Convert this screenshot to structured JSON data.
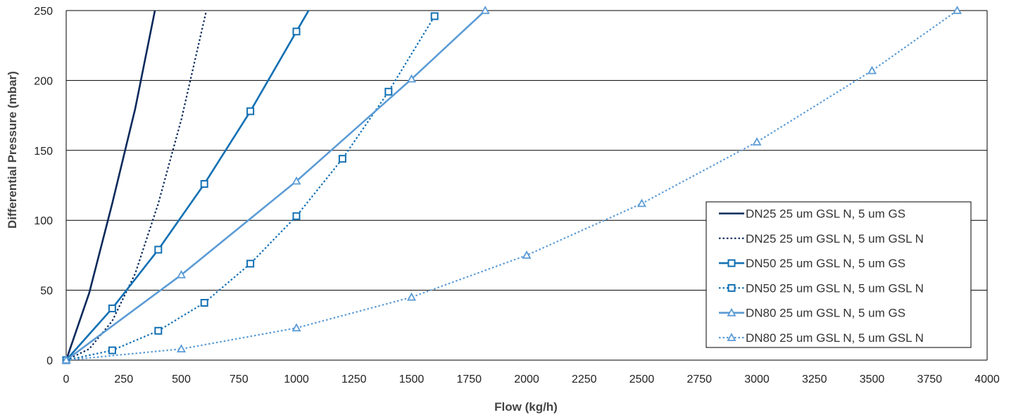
{
  "chart_data": {
    "type": "line",
    "title": "",
    "xlabel": "Flow (kg/h)",
    "ylabel": "Differential Pressure (mbar)",
    "xlim": [
      0,
      4000
    ],
    "ylim": [
      0,
      250
    ],
    "x_ticks": [
      "0",
      "250",
      "500",
      "750",
      "1000",
      "1250",
      "1500",
      "1750",
      "2000",
      "2250",
      "2500",
      "2750",
      "3000",
      "3250",
      "3500",
      "3750",
      "4000"
    ],
    "y_ticks": [
      "0",
      "50",
      "100",
      "150",
      "200",
      "250"
    ],
    "grid": "horizontal",
    "legend_position": "right",
    "series": [
      {
        "name": "DN25 25 um GSL N, 5 um GS",
        "color": "#0b2a5c",
        "dash": "solid",
        "marker": "none",
        "x": [
          0,
          100,
          200,
          300,
          400
        ],
        "y": [
          0,
          48,
          112,
          180,
          262
        ]
      },
      {
        "name": "DN25 25 um GSL N, 5 um GSL N",
        "color": "#0b2a5c",
        "dash": "dotted",
        "marker": "none",
        "x": [
          0,
          100,
          200,
          300,
          400,
          500,
          620
        ],
        "y": [
          0,
          8,
          28,
          62,
          112,
          172,
          258
        ]
      },
      {
        "name": "DN50 25 um GSL N, 5 um GS",
        "color": "#1270b3",
        "dash": "solid",
        "marker": "square",
        "x": [
          0,
          200,
          400,
          600,
          800,
          1000,
          1060
        ],
        "y": [
          0,
          37,
          79,
          126,
          178,
          235,
          252
        ]
      },
      {
        "name": "DN50 25 um GSL N, 5 um GSL N",
        "color": "#1270b3",
        "dash": "dotted",
        "marker": "square",
        "x": [
          0,
          200,
          400,
          600,
          800,
          1000,
          1200,
          1400,
          1600
        ],
        "y": [
          0,
          7,
          21,
          41,
          69,
          103,
          144,
          192,
          246
        ]
      },
      {
        "name": "DN80 25 um GSL N, 5 um GS",
        "color": "#5b9bd5",
        "dash": "solid",
        "marker": "triangle",
        "x": [
          0,
          500,
          1000,
          1500,
          1820
        ],
        "y": [
          0,
          61,
          128,
          201,
          250
        ]
      },
      {
        "name": "DN80 25 um GSL N, 5 um GSL N",
        "color": "#5b9bd5",
        "dash": "dotted",
        "marker": "triangle",
        "x": [
          0,
          500,
          1000,
          1500,
          2000,
          2500,
          3000,
          3500,
          3870
        ],
        "y": [
          0,
          8,
          23,
          45,
          75,
          112,
          156,
          207,
          250
        ]
      }
    ]
  }
}
